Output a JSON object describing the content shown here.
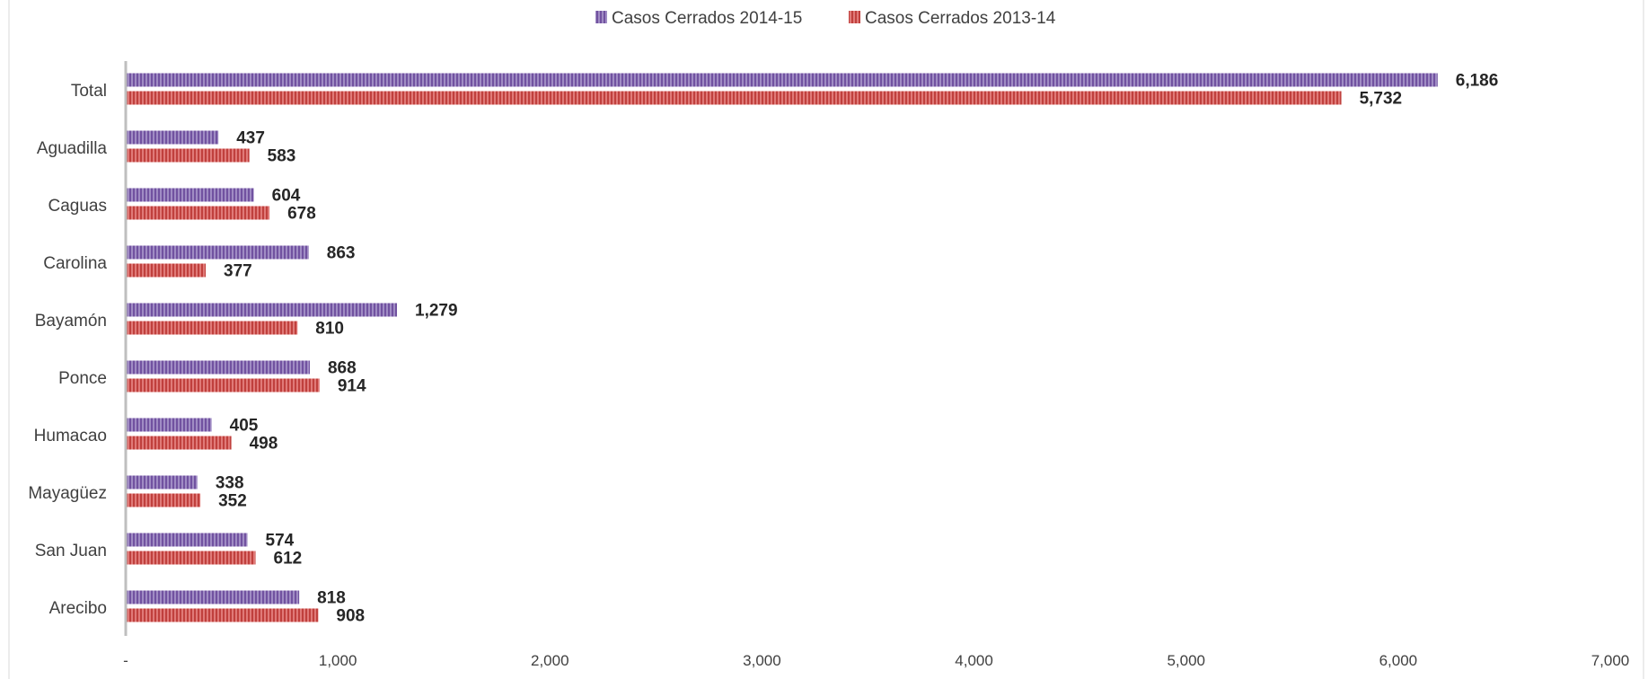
{
  "chart_data": {
    "type": "bar",
    "orientation": "horizontal",
    "title": "",
    "xlabel": "",
    "ylabel": "",
    "xlim": [
      0,
      7000
    ],
    "x_ticks": [
      0,
      1000,
      2000,
      3000,
      4000,
      5000,
      6000,
      7000
    ],
    "x_tick_labels": [
      "-",
      "1,000",
      "2,000",
      "3,000",
      "4,000",
      "5,000",
      "6,000",
      "7,000"
    ],
    "grid": false,
    "legend_position": "top",
    "categories": [
      "Total",
      "Aguadilla",
      "Caguas",
      "Carolina",
      "Bayamón",
      "Ponce",
      "Humacao",
      "Mayagüez",
      "San Juan",
      "Arecibo"
    ],
    "series": [
      {
        "name": "Casos Cerrados 2014-15",
        "color": "#8064a2",
        "values": [
          6186,
          437,
          604,
          863,
          1279,
          868,
          405,
          338,
          574,
          818
        ],
        "labels": [
          "6,186",
          "437",
          "604",
          "863",
          "1,279",
          "868",
          "405",
          "338",
          "574",
          "818"
        ]
      },
      {
        "name": "Casos Cerrados 2013-14",
        "color": "#c0504d",
        "values": [
          5732,
          583,
          678,
          377,
          810,
          914,
          498,
          352,
          612,
          908
        ],
        "labels": [
          "5,732",
          "583",
          "678",
          "377",
          "810",
          "914",
          "498",
          "352",
          "612",
          "908"
        ]
      }
    ]
  }
}
